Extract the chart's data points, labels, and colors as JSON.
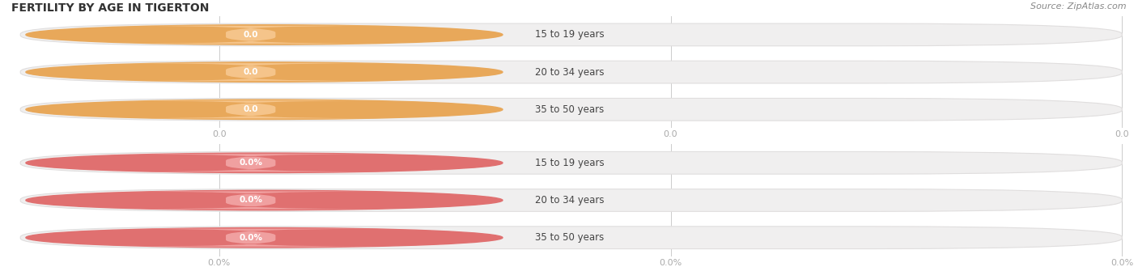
{
  "title": "FERTILITY BY AGE IN TIGERTON",
  "source": "Source: ZipAtlas.com",
  "top_section": {
    "labels": [
      "15 to 19 years",
      "20 to 34 years",
      "35 to 50 years"
    ],
    "values": [
      0.0,
      0.0,
      0.0
    ],
    "bar_color": "#f5c48a",
    "circle_color": "#e8a85a",
    "bar_bg_color": "#f0efef",
    "bar_bg_edge_color": "#e0dede",
    "label_color": "#444444",
    "value_label_color": "#ccaa88",
    "tick_color": "#aaaaaa",
    "tick_label_suffix": "",
    "x_tick_positions": [
      0.0,
      0.5,
      1.0
    ],
    "x_tick_labels": [
      "0.0",
      "0.0",
      "0.0"
    ]
  },
  "bottom_section": {
    "labels": [
      "15 to 19 years",
      "20 to 34 years",
      "35 to 50 years"
    ],
    "values": [
      0.0,
      0.0,
      0.0
    ],
    "bar_color": "#f0a0a0",
    "circle_color": "#e07070",
    "bar_bg_color": "#f0efef",
    "bar_bg_edge_color": "#e0dede",
    "label_color": "#444444",
    "value_label_color": "#cc8888",
    "tick_color": "#aaaaaa",
    "tick_label_suffix": "%",
    "x_tick_positions": [
      0.0,
      0.5,
      1.0
    ],
    "x_tick_labels": [
      "0.0%",
      "0.0%",
      "0.0%"
    ]
  },
  "fig_width": 14.06,
  "fig_height": 3.3,
  "background_color": "#ffffff",
  "title_fontsize": 10,
  "label_fontsize": 8.5,
  "value_fontsize": 7.5,
  "source_fontsize": 8,
  "tick_fontsize": 8
}
